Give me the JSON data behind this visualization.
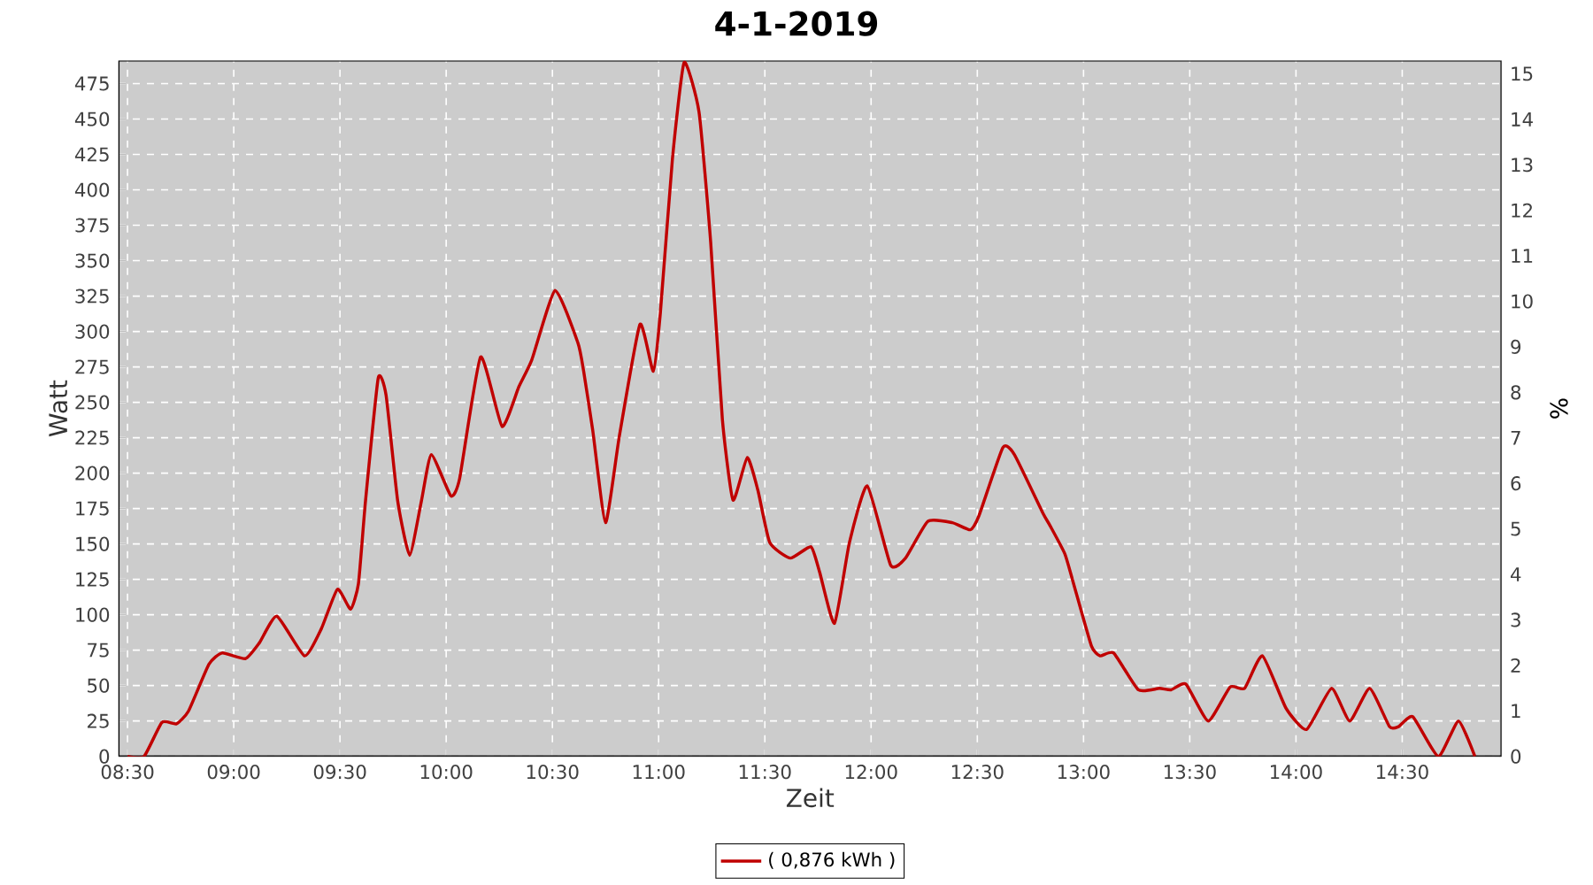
{
  "chart_data": {
    "type": "line",
    "title": "4-1-2019",
    "xlabel": "Zeit",
    "ylabel": "Watt",
    "y2label": "%",
    "x": [
      8.5,
      8.578,
      8.662,
      8.73,
      8.787,
      8.883,
      8.945,
      9.055,
      9.12,
      9.203,
      9.333,
      9.412,
      9.488,
      9.55,
      9.587,
      9.62,
      9.68,
      9.717,
      9.772,
      9.828,
      9.883,
      9.93,
      10.022,
      10.063,
      10.162,
      10.263,
      10.342,
      10.403,
      10.513,
      10.62,
      10.647,
      10.69,
      10.75,
      10.815,
      10.912,
      10.975,
      11.008,
      11.065,
      11.12,
      11.19,
      11.245,
      11.3,
      11.35,
      11.417,
      11.467,
      11.523,
      11.62,
      11.717,
      11.758,
      11.828,
      11.898,
      11.982,
      12.092,
      12.162,
      12.267,
      12.383,
      12.467,
      12.508,
      12.62,
      12.675,
      12.808,
      12.842,
      12.912,
      12.953,
      13.037,
      13.078,
      13.142,
      13.258,
      13.357,
      13.412,
      13.482,
      13.587,
      13.69,
      13.758,
      13.842,
      13.953,
      14.05,
      14.167,
      14.253,
      14.347,
      14.44,
      14.482,
      14.55,
      14.67,
      14.765,
      14.842
    ],
    "series": [
      {
        "name": "( 0,876 kWh )",
        "color": "#c00000",
        "values": [
          0,
          0,
          24,
          23,
          32,
          65,
          73,
          69,
          80,
          99,
          71,
          90,
          118,
          104,
          122,
          180,
          267,
          255,
          180,
          142,
          180,
          213,
          184,
          196,
          282,
          233,
          261,
          280,
          329,
          292,
          272,
          230,
          165,
          226,
          305,
          272,
          313,
          422,
          490,
          455,
          363,
          238,
          181,
          211,
          188,
          151,
          140,
          148,
          130,
          94,
          151,
          191,
          135,
          140,
          166,
          165,
          160,
          170,
          218,
          213,
          172,
          163,
          143,
          122,
          78,
          71,
          73,
          47,
          48,
          47,
          51,
          25,
          49,
          48,
          71,
          34,
          19,
          48,
          25,
          48,
          21,
          21,
          28,
          0,
          25,
          0
        ]
      }
    ],
    "xlim": [
      8.458,
      14.967
    ],
    "ylim": [
      0,
      491.25
    ],
    "y2lim": [
      0,
      15.29
    ],
    "xticks": [
      {
        "value": 8.5,
        "label": "08:30"
      },
      {
        "value": 9,
        "label": "09:00"
      },
      {
        "value": 9.5,
        "label": "09:30"
      },
      {
        "value": 10,
        "label": "10:00"
      },
      {
        "value": 10.5,
        "label": "10:30"
      },
      {
        "value": 11,
        "label": "11:00"
      },
      {
        "value": 11.5,
        "label": "11:30"
      },
      {
        "value": 12,
        "label": "12:00"
      },
      {
        "value": 12.5,
        "label": "12:30"
      },
      {
        "value": 13,
        "label": "13:00"
      },
      {
        "value": 13.5,
        "label": "13:30"
      },
      {
        "value": 14,
        "label": "14:00"
      },
      {
        "value": 14.5,
        "label": "14:30"
      }
    ],
    "yticks": [
      0,
      25,
      50,
      75,
      100,
      125,
      150,
      175,
      200,
      225,
      250,
      275,
      300,
      325,
      350,
      375,
      400,
      425,
      450,
      475
    ],
    "y2ticks": [
      0,
      1,
      2,
      3,
      4,
      5,
      6,
      7,
      8,
      9,
      10,
      11,
      12,
      13,
      14,
      15
    ],
    "grid": true,
    "legend": "bottom",
    "marker": "none",
    "line_style": "solid"
  }
}
